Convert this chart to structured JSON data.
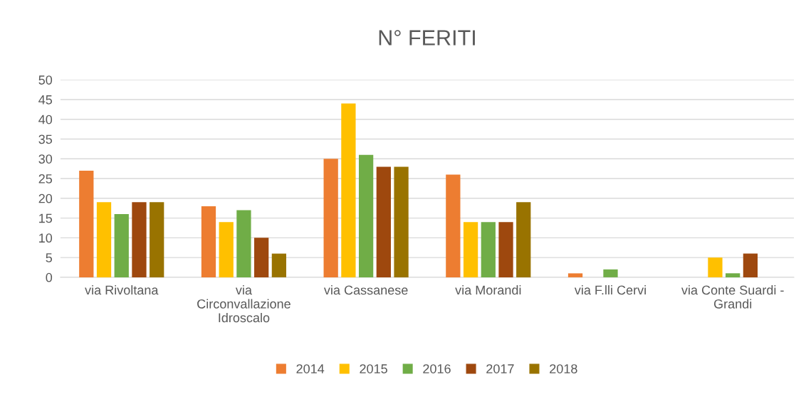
{
  "chart_data": {
    "type": "bar",
    "title": "N° FERITI",
    "categories": [
      "via Rivoltana",
      "via Circonvallazione Idroscalo",
      "via Cassanese",
      "via Morandi",
      "via F.lli Cervi",
      "via Conte Suardi - Grandi"
    ],
    "series": [
      {
        "name": "2014",
        "color": "#ed7d31",
        "values": [
          27,
          18,
          30,
          26,
          1,
          0
        ]
      },
      {
        "name": "2015",
        "color": "#ffc000",
        "values": [
          19,
          14,
          44,
          14,
          0,
          5
        ]
      },
      {
        "name": "2016",
        "color": "#70ad47",
        "values": [
          16,
          17,
          31,
          14,
          2,
          1
        ]
      },
      {
        "name": "2017",
        "color": "#9e480e",
        "values": [
          19,
          10,
          28,
          14,
          0,
          6
        ]
      },
      {
        "name": "2018",
        "color": "#997300",
        "values": [
          19,
          6,
          28,
          19,
          0,
          0
        ]
      }
    ],
    "ylim": [
      0,
      50
    ],
    "yticks": [
      0,
      5,
      10,
      15,
      20,
      25,
      30,
      35,
      40,
      45,
      50
    ],
    "grid": "y",
    "legend": "bottom"
  }
}
